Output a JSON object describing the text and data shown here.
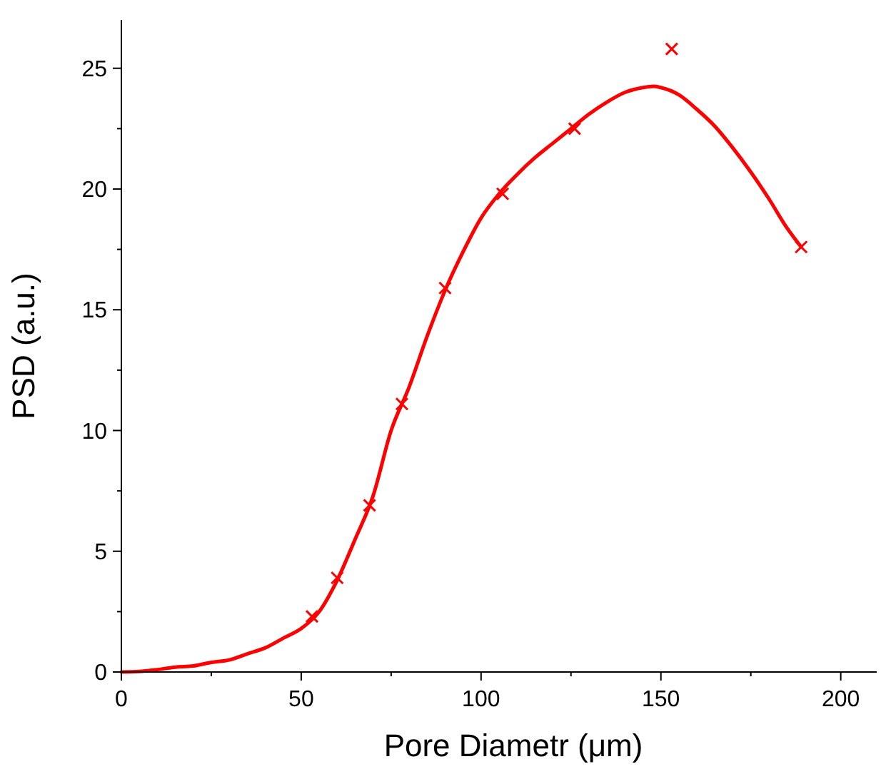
{
  "chart_data": {
    "type": "line",
    "xlabel": "Pore  Diametr  (μm)",
    "ylabel": "PSD  (a.u.)",
    "xlim": [
      0,
      210
    ],
    "ylim": [
      0,
      27
    ],
    "xticks": [
      0,
      {
        "value": 25,
        "label": null
      },
      50,
      {
        "value": 75,
        "label": null
      },
      100,
      {
        "value": 125,
        "label": null
      },
      150,
      {
        "value": 175,
        "label": null
      },
      200
    ],
    "yticks": [
      0,
      {
        "value": 2.5,
        "label": null
      },
      5,
      {
        "value": 7.5,
        "label": null
      },
      10,
      {
        "value": 12.5,
        "label": null
      },
      15,
      {
        "value": 17.5,
        "label": null
      },
      20,
      {
        "value": 22.5,
        "label": null
      },
      25
    ],
    "grid": false,
    "series": [
      {
        "color": "#ff0000",
        "line_style": "solid",
        "x": [
          0,
          5,
          10,
          15,
          20,
          25,
          30,
          35,
          40,
          45,
          50,
          55,
          60,
          65,
          70,
          75,
          80,
          85,
          90,
          95,
          100,
          105,
          110,
          115,
          120,
          125,
          130,
          135,
          140,
          145,
          148,
          150,
          155,
          160,
          165,
          170,
          175,
          180,
          185,
          189
        ],
        "values": [
          0,
          0.02,
          0.1,
          0.2,
          0.25,
          0.4,
          0.5,
          0.75,
          1.0,
          1.4,
          1.8,
          2.5,
          3.8,
          5.5,
          7.3,
          10.0,
          11.8,
          13.9,
          15.8,
          17.4,
          18.8,
          19.8,
          20.6,
          21.3,
          21.9,
          22.5,
          23.1,
          23.6,
          24.0,
          24.2,
          24.25,
          24.2,
          23.9,
          23.3,
          22.6,
          21.7,
          20.7,
          19.6,
          18.4,
          17.6
        ]
      },
      {
        "type": "scatter",
        "color": "#ff0000",
        "marker": "cross",
        "x": [
          53,
          60,
          69,
          78,
          90,
          106,
          126,
          153,
          189
        ],
        "values": [
          2.3,
          3.9,
          6.9,
          11.1,
          15.9,
          19.8,
          22.5,
          25.8,
          17.6
        ]
      }
    ]
  }
}
